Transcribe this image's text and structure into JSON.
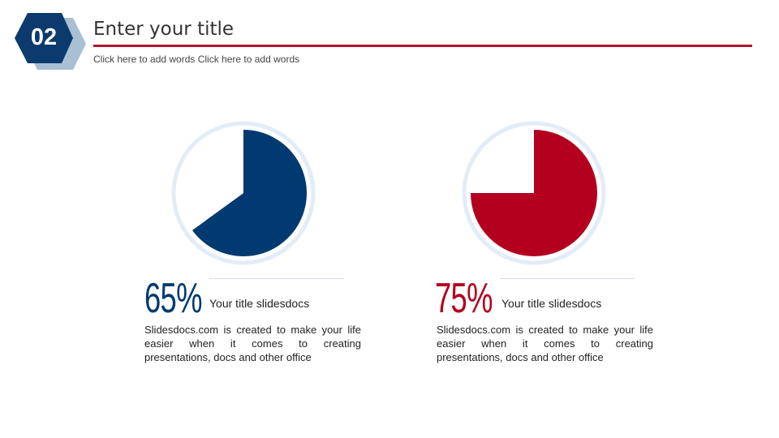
{
  "badge": {
    "number": "02",
    "front_color": "#0c3a6e",
    "back_color": "#a9bfd3"
  },
  "header": {
    "title": "Enter your title",
    "subtitle": "Click here to add words Click here to add words",
    "rule_color": "#b5162e"
  },
  "colors": {
    "blue": "#003a70",
    "red": "#b3001f",
    "ring": "#e3ecf6"
  },
  "items": [
    {
      "percent_label": "65%",
      "title": "Your title slidesdocs",
      "body": "Slidesdocs.com is created to make your life easier when it comes to creating presentations, docs and other office"
    },
    {
      "percent_label": "75%",
      "title": "Your title slidesdocs",
      "body": "Slidesdocs.com is created to make your life easier when it comes to creating presentations, docs and other office"
    }
  ],
  "chart_data": [
    {
      "type": "pie",
      "slices": [
        {
          "value": 65,
          "color": "#003a70"
        },
        {
          "value": 35,
          "color": "#ffffff"
        }
      ]
    },
    {
      "type": "pie",
      "slices": [
        {
          "value": 75,
          "color": "#b3001f"
        },
        {
          "value": 25,
          "color": "#ffffff"
        }
      ]
    }
  ]
}
